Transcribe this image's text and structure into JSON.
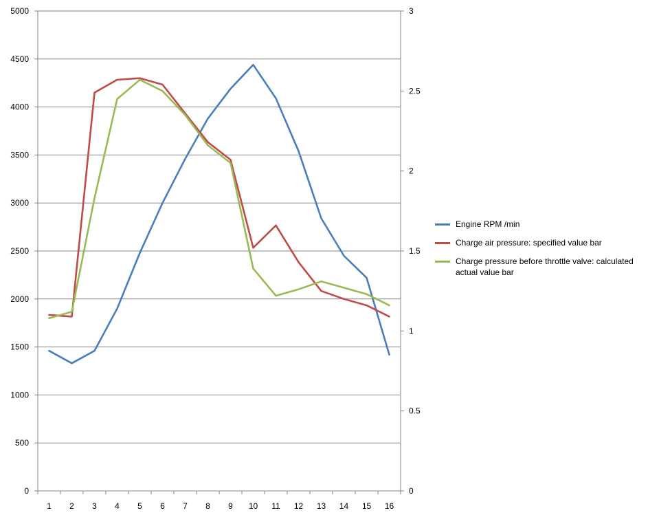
{
  "chart_data": {
    "type": "line",
    "x": [
      1,
      2,
      3,
      4,
      5,
      6,
      7,
      8,
      9,
      10,
      11,
      12,
      13,
      14,
      15,
      16
    ],
    "y_left": {
      "min": 0,
      "max": 5000,
      "ticks": [
        0,
        500,
        1000,
        1500,
        2000,
        2500,
        3000,
        3500,
        4000,
        4500,
        5000
      ]
    },
    "y_right": {
      "min": 0,
      "max": 3,
      "ticks": [
        "0",
        "0.5",
        "1",
        "1.5",
        "2",
        "2.5",
        "3"
      ]
    },
    "grid": true,
    "legend_position": "right",
    "series": [
      {
        "name": "Engine RPM  /min",
        "axis": "left",
        "color": "#4a7ebb",
        "values": [
          1460,
          1330,
          1460,
          1900,
          2480,
          3000,
          3460,
          3880,
          4190,
          4440,
          4090,
          3540,
          2840,
          2450,
          2220,
          1420
        ]
      },
      {
        "name": "Charge air pressure: specified value  bar",
        "axis": "right",
        "color": "#be4b48",
        "values": [
          1.1,
          1.09,
          2.49,
          2.57,
          2.58,
          2.54,
          2.36,
          2.18,
          2.07,
          1.52,
          1.66,
          1.43,
          1.25,
          1.2,
          1.16,
          1.09
        ]
      },
      {
        "name": "Charge pressure before throttle valve: calculated actual value  bar",
        "axis": "right",
        "color": "#98b954",
        "values": [
          1.08,
          1.12,
          1.83,
          2.45,
          2.57,
          2.5,
          2.35,
          2.16,
          2.05,
          1.39,
          1.22,
          1.26,
          1.31,
          1.27,
          1.23,
          1.16
        ]
      }
    ]
  }
}
